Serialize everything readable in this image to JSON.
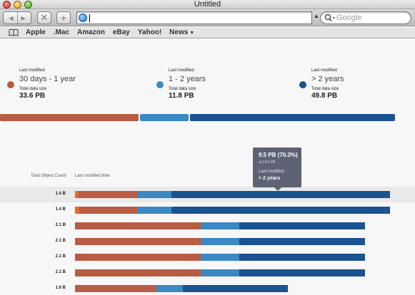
{
  "window": {
    "title": "Untitled"
  },
  "toolbar": {
    "back_glyph": "◀",
    "forward_glyph": "▶",
    "stop_glyph": "✕",
    "add_glyph": "+",
    "url_value": "",
    "search_placeholder": "Google"
  },
  "bookmarks": [
    {
      "label": "Apple"
    },
    {
      "label": ".Mac"
    },
    {
      "label": "Amazon"
    },
    {
      "label": "eBay"
    },
    {
      "label": "Yahoo!"
    },
    {
      "label": "News",
      "caret": "▼"
    }
  ],
  "colors": {
    "bucket_1": "#b85c43",
    "bucket_2": "#3a88c4",
    "bucket_3": "#1a5390",
    "accent_orange": "#ea6a2a"
  },
  "legend": [
    {
      "label": "Last modified",
      "range": "30 days - 1 year",
      "size_label": "Total data size",
      "size": "33.6 PB",
      "color": "#b85c43"
    },
    {
      "label": "Last modified",
      "range": "1 - 2 years",
      "size_label": "Total data size",
      "size": "11.8 PB",
      "color": "#3a88c4"
    },
    {
      "label": "Last modified",
      "range": "> 2 years",
      "size_label": "Total data size",
      "size": "49.8 PB",
      "color": "#1a5390"
    }
  ],
  "overall_share": [
    0.353,
    0.124,
    0.523
  ],
  "table": {
    "count_header": "Total Object Count",
    "time_header": "Last modified time",
    "rows": [
      {
        "count": "1.4 B",
        "highlighted": true,
        "segments": [
          0.005,
          0.083,
          0.047,
          0.306
        ]
      },
      {
        "count": "1.4 B",
        "highlighted": false,
        "segments": [
          0.006,
          0.082,
          0.047,
          0.306
        ]
      },
      {
        "count": "2.1 B",
        "highlighted": false,
        "segments": [
          0,
          0.176,
          0.054,
          0.176
        ]
      },
      {
        "count": "2.1 B",
        "highlighted": false,
        "segments": [
          0,
          0.176,
          0.054,
          0.176
        ]
      },
      {
        "count": "2.1 B",
        "highlighted": false,
        "segments": [
          0,
          0.176,
          0.054,
          0.176
        ]
      },
      {
        "count": "2.1 B",
        "highlighted": false,
        "segments": [
          0,
          0.176,
          0.054,
          0.176
        ]
      },
      {
        "count": "1.6 B",
        "highlighted": false,
        "segments": [
          0,
          0.114,
          0.037,
          0.147
        ]
      }
    ]
  },
  "tooltip": {
    "value": "9.5 PB (70.3%)",
    "of_total": "of 13.5 PB",
    "label": "Last modified",
    "bucket": "> 2 years"
  }
}
